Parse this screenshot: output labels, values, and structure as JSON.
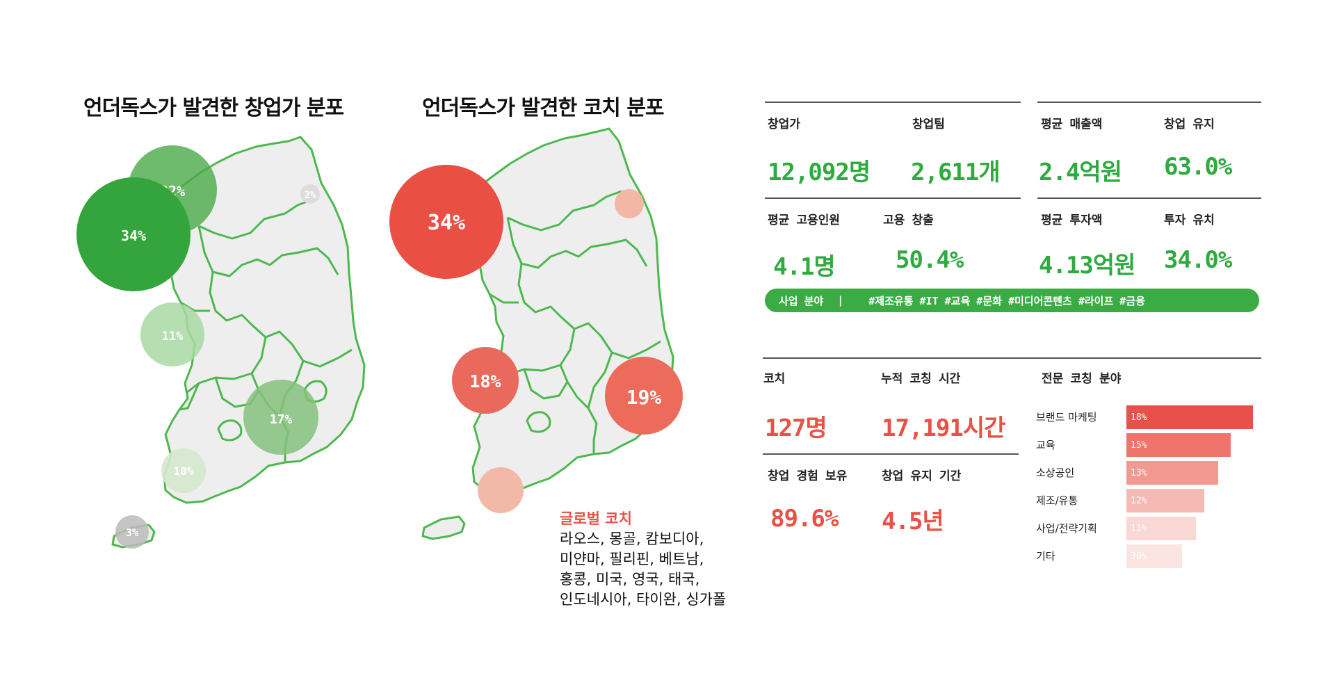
{
  "map_left": {
    "title": "언더독스가 발견한 창업가 분포",
    "bubbles": [
      {
        "label": "22%"
      },
      {
        "label": "34%"
      },
      {
        "label": "2%"
      },
      {
        "label": "11%"
      },
      {
        "label": "17%"
      },
      {
        "label": "10%"
      },
      {
        "label": "3%"
      }
    ]
  },
  "map_right": {
    "title": "언더독스가 발견한 코치 분포",
    "bubbles": [
      {
        "label": "34%"
      },
      {
        "label": "18%"
      },
      {
        "label": "19%"
      }
    ],
    "global": {
      "title": "글로벌 코치",
      "lines": [
        "라오스, 몽골, 캄보디아,",
        "미얀마, 필리핀, 베트남,",
        "홍콩, 미국, 영국, 태국,",
        "인도네시아, 타이완, 싱가폴"
      ]
    }
  },
  "founder_stats": {
    "founders_label": "창업가",
    "founders_value": "12,092명",
    "teams_label": "창업팀",
    "teams_value": "2,611개",
    "avg_revenue_label": "평균 매출액",
    "avg_revenue_value": "2.4억원",
    "survival_label": "창업 유지",
    "survival_value": "63.0%",
    "avg_employees_label": "평균 고용인원",
    "avg_employees_value": "4.1명",
    "job_creation_label": "고용 창출",
    "job_creation_value": "50.4%",
    "avg_investment_label": "평균 투자액",
    "avg_investment_value": "4.13억원",
    "investment_attract_label": "투자 유치",
    "investment_attract_value": "34.0%",
    "business_field_label": "사업 분야",
    "business_field_sep": "|",
    "business_field_tags": "#제조유통 #IT #교육 #문화 #미디어콘텐츠 #라이프 #금융"
  },
  "coach_stats": {
    "coach_label": "코치",
    "coach_value": "127명",
    "hours_label": "누적 코칭 시간",
    "hours_value": "17,191시간",
    "experience_label": "창업 경험 보유",
    "experience_value": "89.6%",
    "duration_label": "창업 유지 기간",
    "duration_value": "4.5년",
    "fields_label": "전문 코칭 분야"
  },
  "chart_data": {
    "type": "bar",
    "orientation": "horizontal",
    "categories": [
      "브랜드 마케팅",
      "교육",
      "소상공인",
      "제조/유통",
      "사업/전략기획",
      "기타"
    ],
    "values": [
      18,
      15,
      13,
      12,
      11,
      30
    ],
    "value_labels": [
      "18%",
      "15%",
      "13%",
      "12%",
      "11%",
      "30%"
    ],
    "colors": [
      "#e8504a",
      "#ee746c",
      "#f29a92",
      "#f6b9b3",
      "#f9d8d5",
      "#fbe4e2"
    ]
  },
  "colors": {
    "green": "#3bab44",
    "red": "#e85144",
    "map_fill": "#eeeeee",
    "map_stroke": "#4db84d"
  }
}
